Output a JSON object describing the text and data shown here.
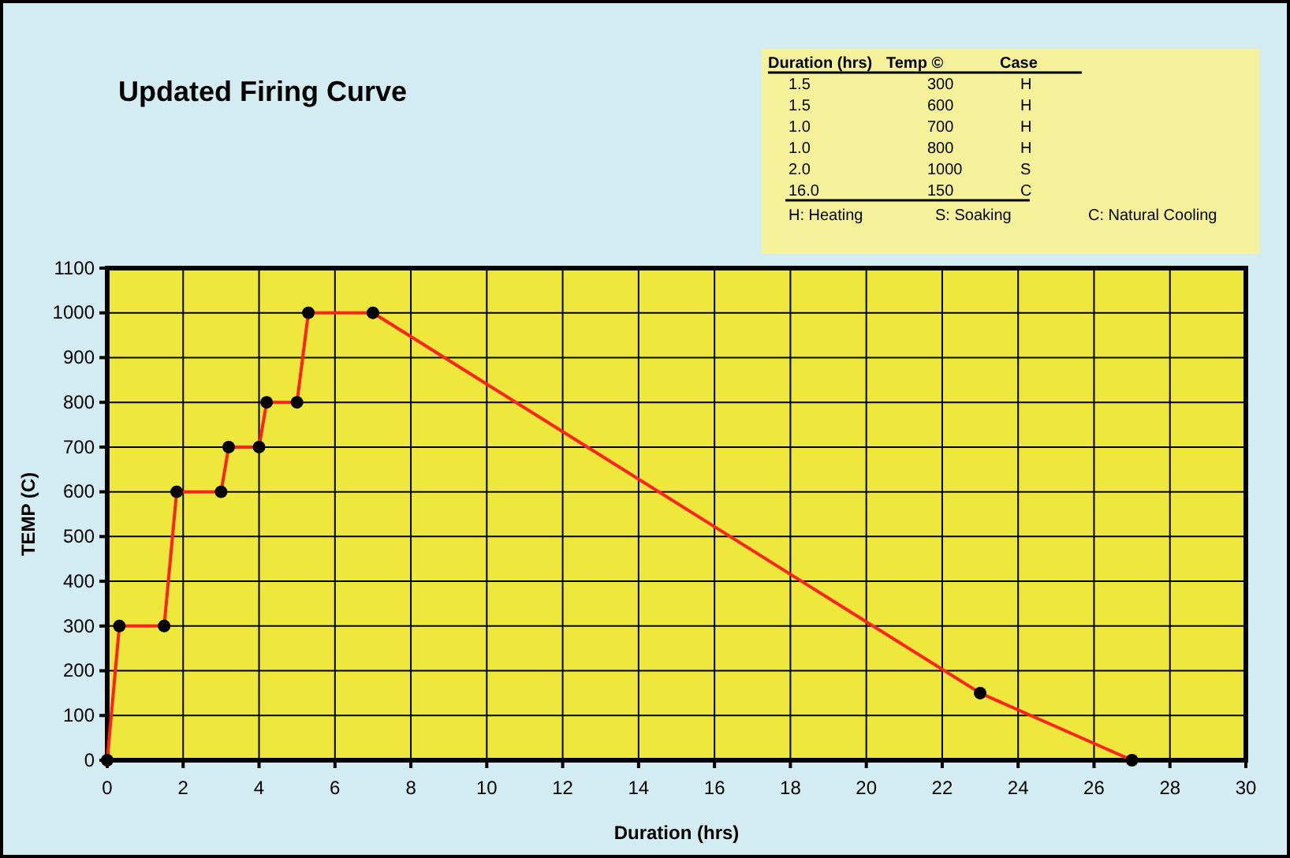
{
  "chart_data": {
    "type": "line",
    "title": "Updated Firing Curve",
    "xlabel": "Duration (hrs)",
    "ylabel": "TEMP (C)",
    "x": [
      0,
      0.32,
      1.5,
      1.83,
      3,
      3.2,
      4,
      4.2,
      5,
      5.3,
      7,
      23,
      27
    ],
    "series": [
      {
        "color": "#ff2020",
        "values": [
          0,
          300,
          300,
          600,
          600,
          700,
          700,
          800,
          800,
          1000,
          1000,
          150,
          0
        ]
      }
    ],
    "xlim": [
      0,
      30
    ],
    "xticks": [
      0,
      2,
      4,
      6,
      8,
      10,
      12,
      14,
      16,
      18,
      20,
      22,
      24,
      26,
      28,
      30
    ],
    "ylim": [
      0,
      1100
    ],
    "yticks": [
      0,
      100,
      200,
      300,
      400,
      500,
      600,
      700,
      800,
      900,
      1000,
      1100
    ],
    "grid": true,
    "marker": "circle",
    "line_style": "solid",
    "annotations": [
      "Duration (hrs)",
      "Temp ©",
      "Case",
      "1.5",
      "300",
      "H",
      "1.5",
      "600",
      "H",
      "1.0",
      "700",
      "H",
      "1.0",
      "800",
      "H",
      "2.0",
      "1000",
      "S",
      "16.0",
      "150",
      "C",
      "H: Heating",
      "S: Soaking",
      "C: Natural Cooling"
    ]
  }
}
